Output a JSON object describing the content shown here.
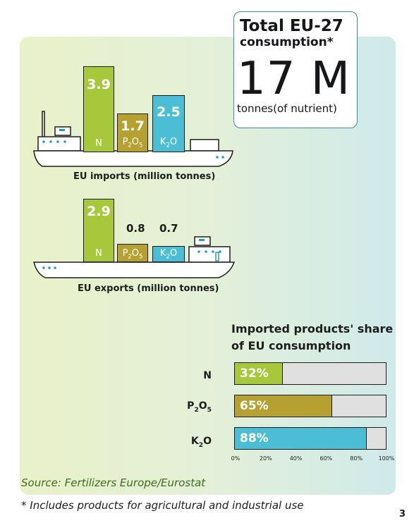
{
  "total": {
    "title": "Total EU-27",
    "subtitle": "consumption*",
    "value": "17 M",
    "unit": "tonnes(of nutrient)"
  },
  "chart_data": [
    {
      "type": "bar",
      "title": "EU imports (million tonnes)",
      "categories": [
        "N",
        "P2O5",
        "K2O"
      ],
      "values": [
        3.9,
        1.7,
        2.5
      ],
      "value_labels": [
        "3.9",
        "1.7",
        "2.5"
      ],
      "colors": [
        "#a6c83a",
        "#b5a031",
        "#4bbed6"
      ]
    },
    {
      "type": "bar",
      "title": "EU exports (million tonnes)",
      "categories": [
        "N",
        "P2O5",
        "K2O"
      ],
      "values": [
        2.9,
        0.8,
        0.7
      ],
      "value_labels": [
        "2.9",
        "0.8",
        "0.7"
      ],
      "colors": [
        "#a6c83a",
        "#b5a031",
        "#4bbed6"
      ]
    },
    {
      "type": "bar",
      "orientation": "horizontal",
      "title": "Imported products' share of EU consumption",
      "title_lines": [
        "Imported products' share",
        "of EU consumption"
      ],
      "categories": [
        "N",
        "P2O5",
        "K2O"
      ],
      "values": [
        32,
        65,
        88
      ],
      "value_labels": [
        "32%",
        "65%",
        "88%"
      ],
      "xlim": [
        0,
        100
      ],
      "xticks": [
        "0%",
        "20%",
        "40%",
        "60%",
        "80%",
        "100%"
      ],
      "colors": [
        "#a6c83a",
        "#b5a031",
        "#4bbed6"
      ]
    }
  ],
  "labels": {
    "N": "N",
    "P_base": "P",
    "P_sub1": "2",
    "P_mid": "O",
    "P_sub2": "5",
    "K_base": "K",
    "K_sub": "2",
    "K_end": "O"
  },
  "source": "Source: Fertilizers Europe/Eurostat",
  "note": "* Includes products for agricultural and industrial use",
  "page_number": "3"
}
